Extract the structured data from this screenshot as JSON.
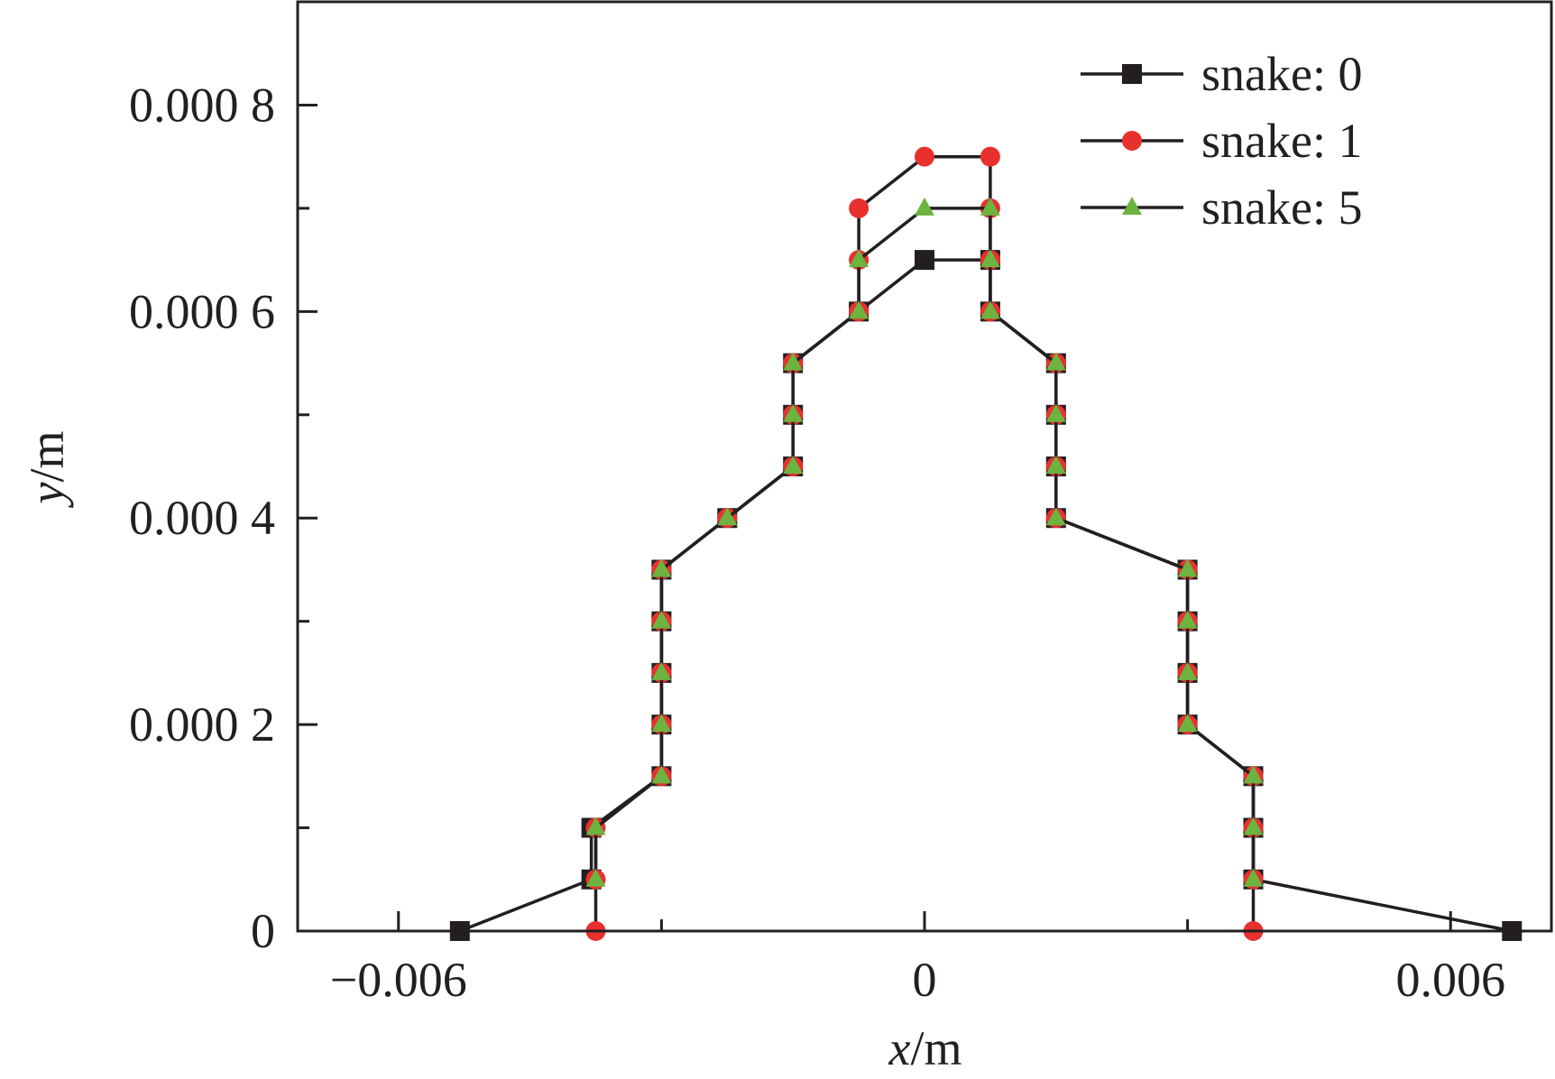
{
  "chart_data": {
    "type": "line",
    "xlabel": {
      "var": "x",
      "unit": "/m"
    },
    "ylabel": {
      "var": "y",
      "unit": "/m"
    },
    "xlim": [
      -0.00715,
      0.00715
    ],
    "ylim": [
      0,
      0.0009
    ],
    "x_major_ticks": [
      {
        "value": -0.006,
        "label": "−0.006"
      },
      {
        "value": 0,
        "label": "0"
      },
      {
        "value": 0.006,
        "label": "0.006"
      }
    ],
    "x_minor_ticks": [
      -0.003,
      0.003
    ],
    "y_major_ticks": [
      {
        "value": 0,
        "label": "0"
      },
      {
        "value": 0.0002,
        "label": "0.000 2"
      },
      {
        "value": 0.0004,
        "label": "0.000 4"
      },
      {
        "value": 0.0006,
        "label": "0.000 6"
      },
      {
        "value": 0.0008,
        "label": "0.000 8"
      }
    ],
    "y_minor_ticks": [
      0.0001,
      0.0003,
      0.0005,
      0.0007
    ],
    "grid": false,
    "legend_position": "top-right",
    "series": [
      {
        "name": "snake: 0",
        "marker": "square",
        "color": "#231f20",
        "line_color": "#231f20",
        "points": [
          [
            -0.0053,
            0
          ],
          [
            -0.0038,
            5e-05
          ],
          [
            -0.0038,
            0.0001
          ],
          [
            -0.003,
            0.00015
          ],
          [
            -0.003,
            0.0002
          ],
          [
            -0.003,
            0.00025
          ],
          [
            -0.003,
            0.0003
          ],
          [
            -0.003,
            0.00035
          ],
          [
            -0.00225,
            0.0004
          ],
          [
            -0.0015,
            0.00045
          ],
          [
            -0.0015,
            0.0005
          ],
          [
            -0.0015,
            0.00055
          ],
          [
            -0.00075,
            0.0006
          ],
          [
            0,
            0.00065
          ],
          [
            0.00075,
            0.00065
          ],
          [
            0.00075,
            0.0006
          ],
          [
            0.0015,
            0.00055
          ],
          [
            0.0015,
            0.0005
          ],
          [
            0.0015,
            0.00045
          ],
          [
            0.0015,
            0.0004
          ],
          [
            0.003,
            0.00035
          ],
          [
            0.003,
            0.0003
          ],
          [
            0.003,
            0.00025
          ],
          [
            0.003,
            0.0002
          ],
          [
            0.00375,
            0.00015
          ],
          [
            0.00375,
            0.0001
          ],
          [
            0.00375,
            5e-05
          ],
          [
            0.0067,
            0
          ]
        ]
      },
      {
        "name": "snake: 1",
        "marker": "circle",
        "color": "#e8312f",
        "line_color": "#231f20",
        "points": [
          [
            -0.00375,
            0
          ],
          [
            -0.00375,
            5e-05
          ],
          [
            -0.00375,
            0.0001
          ],
          [
            -0.003,
            0.00015
          ],
          [
            -0.003,
            0.0002
          ],
          [
            -0.003,
            0.00025
          ],
          [
            -0.003,
            0.0003
          ],
          [
            -0.003,
            0.00035
          ],
          [
            -0.00225,
            0.0004
          ],
          [
            -0.0015,
            0.00045
          ],
          [
            -0.0015,
            0.0005
          ],
          [
            -0.0015,
            0.00055
          ],
          [
            -0.00075,
            0.0006
          ],
          [
            -0.00075,
            0.00065
          ],
          [
            -0.00075,
            0.0007
          ],
          [
            0,
            0.00075
          ],
          [
            0.00075,
            0.00075
          ],
          [
            0.00075,
            0.0007
          ],
          [
            0.00075,
            0.00065
          ],
          [
            0.00075,
            0.0006
          ],
          [
            0.0015,
            0.00055
          ],
          [
            0.0015,
            0.0005
          ],
          [
            0.0015,
            0.00045
          ],
          [
            0.0015,
            0.0004
          ],
          [
            0.003,
            0.00035
          ],
          [
            0.003,
            0.0003
          ],
          [
            0.003,
            0.00025
          ],
          [
            0.003,
            0.0002
          ],
          [
            0.00375,
            0.00015
          ],
          [
            0.00375,
            0.0001
          ],
          [
            0.00375,
            5e-05
          ],
          [
            0.00375,
            0
          ]
        ]
      },
      {
        "name": "snake: 5",
        "marker": "triangle",
        "color": "#6db33f",
        "line_color": "#231f20",
        "points": [
          [
            -0.00375,
            5e-05
          ],
          [
            -0.00375,
            0.0001
          ],
          [
            -0.003,
            0.00015
          ],
          [
            -0.003,
            0.0002
          ],
          [
            -0.003,
            0.00025
          ],
          [
            -0.003,
            0.0003
          ],
          [
            -0.003,
            0.00035
          ],
          [
            -0.00225,
            0.0004
          ],
          [
            -0.0015,
            0.00045
          ],
          [
            -0.0015,
            0.0005
          ],
          [
            -0.0015,
            0.00055
          ],
          [
            -0.00075,
            0.0006
          ],
          [
            -0.00075,
            0.00065
          ],
          [
            0,
            0.0007
          ],
          [
            0.00075,
            0.0007
          ],
          [
            0.00075,
            0.00065
          ],
          [
            0.00075,
            0.0006
          ],
          [
            0.0015,
            0.00055
          ],
          [
            0.0015,
            0.0005
          ],
          [
            0.0015,
            0.00045
          ],
          [
            0.0015,
            0.0004
          ],
          [
            0.003,
            0.00035
          ],
          [
            0.003,
            0.0003
          ],
          [
            0.003,
            0.00025
          ],
          [
            0.003,
            0.0002
          ],
          [
            0.00375,
            0.00015
          ],
          [
            0.00375,
            0.0001
          ],
          [
            0.00375,
            5e-05
          ]
        ]
      }
    ]
  }
}
